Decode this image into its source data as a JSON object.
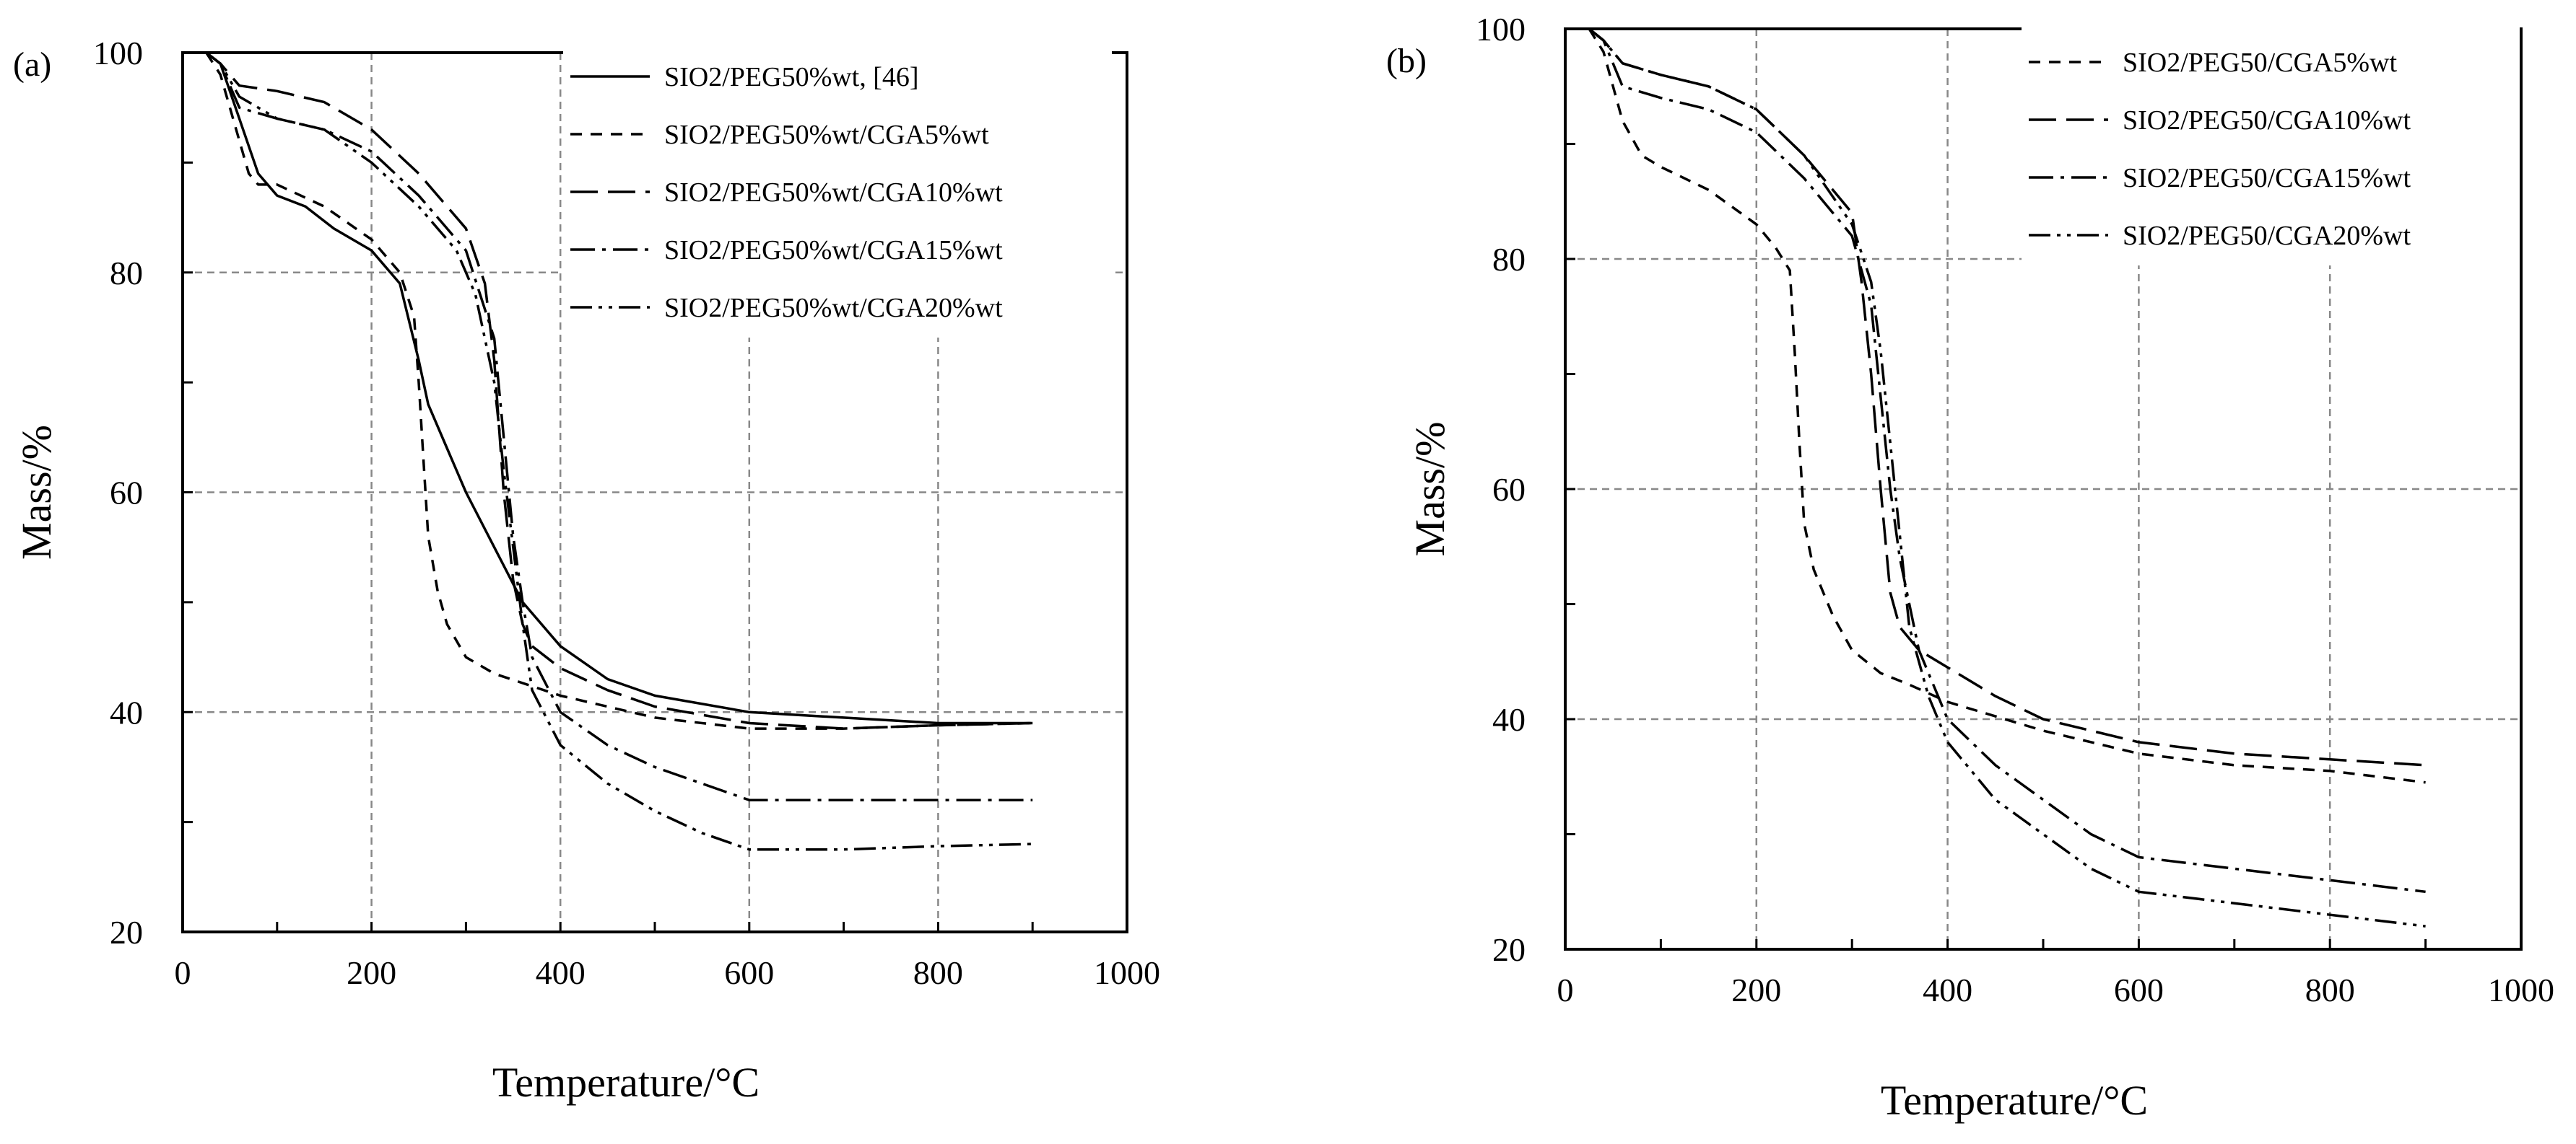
{
  "chart_data": [
    {
      "panel": "(a)",
      "type": "line",
      "xlabel": "Temperature/°C",
      "ylabel": "Mass/%",
      "xlim": [
        0,
        1000
      ],
      "ylim": [
        20,
        100
      ],
      "xticks": [
        0,
        200,
        400,
        600,
        800,
        1000
      ],
      "yticks": [
        20,
        40,
        60,
        80,
        100
      ],
      "grid": true,
      "legend_position": "top-right",
      "series": [
        {
          "name": "SIO2/PEG50%wt, [46]",
          "style": "solid",
          "x": [
            25,
            40,
            60,
            80,
            100,
            130,
            160,
            200,
            230,
            250,
            260,
            280,
            300,
            330,
            360,
            400,
            450,
            500,
            600,
            700,
            800,
            900
          ],
          "y": [
            100,
            99,
            94,
            89,
            87,
            86,
            84,
            82,
            79,
            72,
            68,
            64,
            60,
            55,
            50,
            46,
            43,
            41.5,
            40,
            39.5,
            39,
            39
          ]
        },
        {
          "name": "SIO2/PEG50%wt/CGA5%wt",
          "style": "dashed",
          "x": [
            25,
            40,
            60,
            70,
            80,
            100,
            150,
            200,
            230,
            245,
            250,
            255,
            260,
            270,
            280,
            300,
            330,
            400,
            500,
            600,
            700,
            800,
            900
          ],
          "y": [
            100,
            98,
            92,
            89,
            88,
            88,
            86,
            83,
            80,
            76,
            70,
            63,
            56,
            51,
            48,
            45,
            43.5,
            41.5,
            39.5,
            38.5,
            38.5,
            38.8,
            39
          ]
        },
        {
          "name": "SIO2/PEG50%wt/CGA10%wt",
          "style": "long-dash",
          "x": [
            25,
            40,
            60,
            100,
            150,
            200,
            250,
            300,
            320,
            330,
            340,
            350,
            360,
            370,
            400,
            450,
            500,
            600,
            700,
            800,
            900
          ],
          "y": [
            100,
            99,
            97,
            96.5,
            95.5,
            93,
            89,
            84,
            79,
            72,
            60,
            52,
            48,
            46,
            44,
            42,
            40.5,
            39,
            38.5,
            38.8,
            39
          ]
        },
        {
          "name": "SIO2/PEG50%wt/CGA15%wt",
          "style": "dash-dot",
          "x": [
            25,
            40,
            60,
            100,
            150,
            200,
            250,
            300,
            330,
            340,
            350,
            360,
            370,
            400,
            450,
            500,
            550,
            600,
            650,
            700,
            800,
            900
          ],
          "y": [
            100,
            99,
            95,
            94,
            93,
            91,
            87,
            82,
            74,
            65,
            56,
            50,
            45,
            40,
            37,
            35,
            33.5,
            32,
            32,
            32,
            32,
            32
          ]
        },
        {
          "name": "SIO2/PEG50%wt/CGA20%wt",
          "style": "dash-dot-dot",
          "x": [
            25,
            40,
            60,
            100,
            150,
            200,
            250,
            290,
            310,
            330,
            340,
            350,
            360,
            370,
            400,
            450,
            500,
            550,
            600,
            700,
            800,
            900
          ],
          "y": [
            100,
            99,
            96,
            94,
            93,
            90,
            86,
            82,
            78,
            70,
            62,
            55,
            48,
            42,
            37,
            33.5,
            31,
            29,
            27.5,
            27.5,
            27.8,
            28
          ]
        }
      ]
    },
    {
      "panel": "(b)",
      "type": "line",
      "xlabel": "Temperature/°C",
      "ylabel": "Mass/%",
      "xlim": [
        0,
        1000
      ],
      "ylim": [
        20,
        100
      ],
      "xticks": [
        0,
        200,
        400,
        600,
        800,
        1000
      ],
      "yticks": [
        20,
        40,
        60,
        80,
        100
      ],
      "grid": true,
      "legend_position": "top-right",
      "series": [
        {
          "name": "SIO2/PEG50/CGA5%wt",
          "style": "dashed",
          "x": [
            25,
            40,
            60,
            80,
            100,
            150,
            200,
            220,
            235,
            240,
            245,
            250,
            260,
            280,
            300,
            330,
            360,
            400,
            500,
            600,
            700,
            800,
            900
          ],
          "y": [
            100,
            98,
            92,
            89,
            88,
            86,
            83,
            81,
            79,
            72,
            64,
            57,
            53,
            49,
            46,
            44,
            43,
            41.5,
            39,
            37,
            36,
            35.5,
            34.5
          ]
        },
        {
          "name": "SIO2/PEG50/CGA10%wt",
          "style": "long-dash",
          "x": [
            25,
            40,
            60,
            100,
            150,
            200,
            250,
            300,
            310,
            320,
            330,
            340,
            350,
            370,
            400,
            450,
            500,
            600,
            700,
            800,
            900
          ],
          "y": [
            100,
            99,
            97,
            96,
            95,
            93,
            89,
            84,
            78,
            70,
            60,
            51,
            48,
            46,
            44.5,
            42,
            40,
            38,
            37,
            36.5,
            36
          ]
        },
        {
          "name": "SIO2/PEG50/CGA15%wt",
          "style": "dash-dot",
          "x": [
            25,
            40,
            60,
            100,
            150,
            200,
            250,
            300,
            320,
            330,
            340,
            350,
            360,
            370,
            390,
            400,
            450,
            500,
            550,
            600,
            700,
            800,
            900
          ],
          "y": [
            100,
            99,
            95,
            94,
            93,
            91,
            87,
            82,
            76,
            68,
            60,
            54,
            50,
            46,
            42,
            40,
            36,
            33,
            30,
            28,
            27,
            26,
            25
          ]
        },
        {
          "name": "SIO2/PEG50/CGA20%wt",
          "style": "dash-dot-dot",
          "x": [
            25,
            40,
            60,
            100,
            150,
            200,
            250,
            300,
            320,
            330,
            340,
            350,
            360,
            380,
            400,
            450,
            500,
            550,
            600,
            700,
            800,
            900
          ],
          "y": [
            100,
            99,
            97,
            96,
            95,
            93,
            89,
            83,
            78,
            72,
            64,
            56,
            48,
            42,
            38,
            33,
            30,
            27,
            25,
            24,
            23,
            22
          ]
        }
      ]
    }
  ]
}
